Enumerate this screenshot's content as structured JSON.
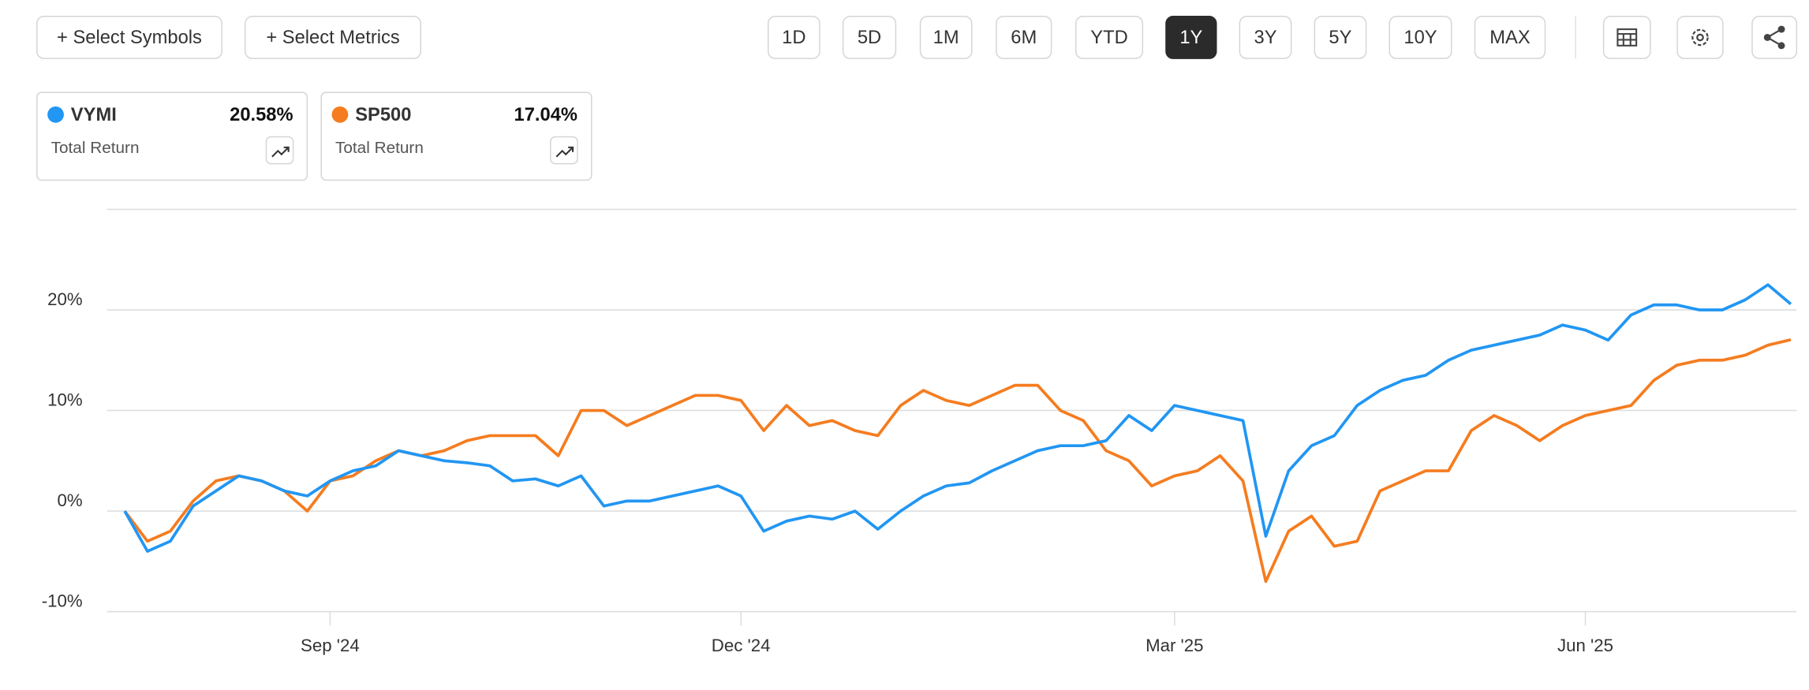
{
  "toolbar": {
    "select_symbols": "+ Select Symbols",
    "select_metrics": "+ Select Metrics",
    "periods": [
      "1D",
      "5D",
      "1M",
      "6M",
      "YTD",
      "1Y",
      "3Y",
      "5Y",
      "10Y",
      "MAX"
    ],
    "active_period_index": 5
  },
  "cards": [
    {
      "symbol": "VYMI",
      "value": "20.58%",
      "label": "Total Return"
    },
    {
      "symbol": "SP500",
      "value": "17.04%",
      "label": "Total Return"
    }
  ],
  "chart_data": {
    "type": "line",
    "categories": [
      null,
      null,
      null,
      null,
      null,
      null,
      null,
      null,
      null,
      "Sep '24",
      null,
      null,
      null,
      null,
      null,
      null,
      null,
      null,
      null,
      null,
      null,
      null,
      null,
      null,
      null,
      null,
      null,
      "Dec '24",
      null,
      null,
      null,
      null,
      null,
      null,
      null,
      null,
      null,
      null,
      null,
      null,
      null,
      null,
      null,
      null,
      null,
      null,
      "Mar '25",
      null,
      null,
      null,
      null,
      null,
      null,
      null,
      null,
      null,
      null,
      null,
      null,
      null,
      null,
      null,
      null,
      null,
      "Jun '25",
      null,
      null,
      null,
      null,
      null,
      null,
      null,
      null,
      null
    ],
    "series": [
      {
        "name": "VYMI",
        "color": "#2196f3",
        "values": [
          0,
          -4,
          -3,
          0.5,
          2,
          3.5,
          3,
          2,
          1.5,
          3,
          4,
          4.5,
          6,
          5.5,
          5,
          4.8,
          4.5,
          3,
          3.2,
          2.5,
          3.5,
          0.5,
          1,
          1,
          1.5,
          2,
          2.5,
          1.5,
          -2,
          -1,
          -0.5,
          -0.8,
          0,
          -1.8,
          0,
          1.5,
          2.5,
          2.8,
          4,
          5,
          6,
          6.5,
          6.5,
          7,
          9.5,
          8,
          10.5,
          10,
          9.5,
          9,
          -2.5,
          4,
          6.5,
          7.5,
          10.5,
          12,
          13,
          13.5,
          15,
          16,
          16.5,
          17,
          17.5,
          18.5,
          18,
          17,
          19.5,
          20.5,
          20.5,
          20,
          20,
          21,
          22.5,
          20.58
        ]
      },
      {
        "name": "SP500",
        "color": "#f57c1f",
        "values": [
          0,
          -3,
          -2,
          1,
          3,
          3.5,
          3,
          2,
          0,
          3,
          3.5,
          5,
          6,
          5.5,
          6,
          7,
          7.5,
          7.5,
          7.5,
          5.5,
          10,
          10,
          8.5,
          9.5,
          10.5,
          11.5,
          11.5,
          11,
          8,
          10.5,
          8.5,
          9,
          8,
          7.5,
          10.5,
          12,
          11,
          10.5,
          11.5,
          12.5,
          12.5,
          10,
          9,
          6,
          5,
          2.5,
          3.5,
          4,
          5.5,
          3,
          -7,
          -2,
          -0.5,
          -3.5,
          -3,
          2,
          3,
          4,
          4,
          8,
          9.5,
          8.5,
          7,
          8.5,
          9.5,
          10,
          10.5,
          13,
          14.5,
          15,
          15,
          15.5,
          16.5,
          17.04
        ]
      }
    ],
    "ylim": [
      -10,
      30
    ],
    "yticks": [
      {
        "value": -10,
        "label": "-10%"
      },
      {
        "value": 0,
        "label": "0%"
      },
      {
        "value": 10,
        "label": "10%"
      },
      {
        "value": 20,
        "label": "20%"
      }
    ],
    "grid": true
  }
}
